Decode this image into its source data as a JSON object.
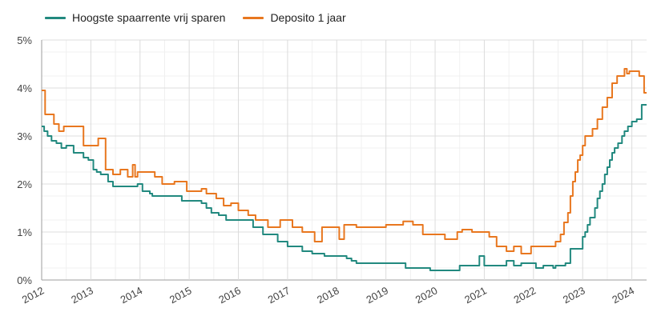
{
  "chart_data": {
    "type": "line",
    "title": "",
    "xlabel": "",
    "ylabel": "",
    "x_ticks": [
      "2012",
      "2013",
      "2014",
      "2015",
      "2016",
      "2017",
      "2018",
      "2019",
      "2020",
      "2021",
      "2022",
      "2023",
      "2024"
    ],
    "y_ticks": [
      "0%",
      "1%",
      "2%",
      "3%",
      "4%",
      "5%"
    ],
    "xlim": [
      2012.0,
      2024.3
    ],
    "ylim": [
      0,
      5
    ],
    "grid": true,
    "legend_position": "top-left",
    "series": [
      {
        "name": "Hoogste spaarrente vrij sparen",
        "color": "#22897f",
        "points": [
          [
            2012.0,
            3.2
          ],
          [
            2012.05,
            3.2
          ],
          [
            2012.05,
            3.1
          ],
          [
            2012.12,
            3.1
          ],
          [
            2012.12,
            3.0
          ],
          [
            2012.2,
            3.0
          ],
          [
            2012.2,
            2.9
          ],
          [
            2012.3,
            2.9
          ],
          [
            2012.3,
            2.85
          ],
          [
            2012.4,
            2.85
          ],
          [
            2012.4,
            2.75
          ],
          [
            2012.5,
            2.75
          ],
          [
            2012.5,
            2.8
          ],
          [
            2012.65,
            2.8
          ],
          [
            2012.65,
            2.65
          ],
          [
            2012.85,
            2.65
          ],
          [
            2012.85,
            2.55
          ],
          [
            2012.95,
            2.55
          ],
          [
            2012.95,
            2.5
          ],
          [
            2013.05,
            2.5
          ],
          [
            2013.05,
            2.3
          ],
          [
            2013.12,
            2.3
          ],
          [
            2013.12,
            2.25
          ],
          [
            2013.2,
            2.25
          ],
          [
            2013.2,
            2.2
          ],
          [
            2013.35,
            2.2
          ],
          [
            2013.35,
            2.05
          ],
          [
            2013.45,
            2.05
          ],
          [
            2013.45,
            1.95
          ],
          [
            2013.95,
            1.95
          ],
          [
            2013.95,
            2.0
          ],
          [
            2014.05,
            2.0
          ],
          [
            2014.05,
            1.85
          ],
          [
            2014.2,
            1.85
          ],
          [
            2014.2,
            1.8
          ],
          [
            2014.25,
            1.8
          ],
          [
            2014.25,
            1.75
          ],
          [
            2014.85,
            1.75
          ],
          [
            2014.85,
            1.65
          ],
          [
            2015.25,
            1.65
          ],
          [
            2015.25,
            1.6
          ],
          [
            2015.35,
            1.6
          ],
          [
            2015.35,
            1.5
          ],
          [
            2015.45,
            1.5
          ],
          [
            2015.45,
            1.4
          ],
          [
            2015.6,
            1.4
          ],
          [
            2015.6,
            1.35
          ],
          [
            2015.75,
            1.35
          ],
          [
            2015.75,
            1.25
          ],
          [
            2016.3,
            1.25
          ],
          [
            2016.3,
            1.1
          ],
          [
            2016.5,
            1.1
          ],
          [
            2016.5,
            0.95
          ],
          [
            2016.8,
            0.95
          ],
          [
            2016.8,
            0.8
          ],
          [
            2017.0,
            0.8
          ],
          [
            2017.0,
            0.7
          ],
          [
            2017.3,
            0.7
          ],
          [
            2017.3,
            0.6
          ],
          [
            2017.5,
            0.6
          ],
          [
            2017.5,
            0.55
          ],
          [
            2017.75,
            0.55
          ],
          [
            2017.75,
            0.5
          ],
          [
            2018.2,
            0.5
          ],
          [
            2018.2,
            0.45
          ],
          [
            2018.3,
            0.45
          ],
          [
            2018.3,
            0.4
          ],
          [
            2018.4,
            0.4
          ],
          [
            2018.4,
            0.35
          ],
          [
            2019.4,
            0.35
          ],
          [
            2019.4,
            0.25
          ],
          [
            2019.9,
            0.25
          ],
          [
            2019.9,
            0.2
          ],
          [
            2020.5,
            0.2
          ],
          [
            2020.5,
            0.3
          ],
          [
            2020.9,
            0.3
          ],
          [
            2020.9,
            0.5
          ],
          [
            2021.0,
            0.5
          ],
          [
            2021.0,
            0.3
          ],
          [
            2021.45,
            0.3
          ],
          [
            2021.45,
            0.4
          ],
          [
            2021.6,
            0.4
          ],
          [
            2021.6,
            0.3
          ],
          [
            2021.75,
            0.3
          ],
          [
            2021.75,
            0.35
          ],
          [
            2022.05,
            0.35
          ],
          [
            2022.05,
            0.25
          ],
          [
            2022.2,
            0.25
          ],
          [
            2022.2,
            0.3
          ],
          [
            2022.4,
            0.3
          ],
          [
            2022.4,
            0.25
          ],
          [
            2022.45,
            0.25
          ],
          [
            2022.45,
            0.3
          ],
          [
            2022.65,
            0.3
          ],
          [
            2022.65,
            0.35
          ],
          [
            2022.75,
            0.35
          ],
          [
            2022.75,
            0.65
          ],
          [
            2023.0,
            0.65
          ],
          [
            2023.0,
            0.9
          ],
          [
            2023.05,
            0.9
          ],
          [
            2023.05,
            1.0
          ],
          [
            2023.1,
            1.0
          ],
          [
            2023.1,
            1.15
          ],
          [
            2023.15,
            1.15
          ],
          [
            2023.15,
            1.3
          ],
          [
            2023.25,
            1.3
          ],
          [
            2023.25,
            1.5
          ],
          [
            2023.3,
            1.5
          ],
          [
            2023.3,
            1.7
          ],
          [
            2023.35,
            1.7
          ],
          [
            2023.35,
            1.85
          ],
          [
            2023.4,
            1.85
          ],
          [
            2023.4,
            2.0
          ],
          [
            2023.45,
            2.0
          ],
          [
            2023.45,
            2.2
          ],
          [
            2023.5,
            2.2
          ],
          [
            2023.5,
            2.35
          ],
          [
            2023.55,
            2.35
          ],
          [
            2023.55,
            2.5
          ],
          [
            2023.6,
            2.5
          ],
          [
            2023.6,
            2.65
          ],
          [
            2023.65,
            2.65
          ],
          [
            2023.65,
            2.75
          ],
          [
            2023.72,
            2.75
          ],
          [
            2023.72,
            2.85
          ],
          [
            2023.8,
            2.85
          ],
          [
            2023.8,
            3.0
          ],
          [
            2023.85,
            3.0
          ],
          [
            2023.85,
            3.1
          ],
          [
            2023.92,
            3.1
          ],
          [
            2023.92,
            3.2
          ],
          [
            2024.0,
            3.2
          ],
          [
            2024.0,
            3.3
          ],
          [
            2024.1,
            3.3
          ],
          [
            2024.1,
            3.35
          ],
          [
            2024.2,
            3.35
          ],
          [
            2024.2,
            3.65
          ],
          [
            2024.3,
            3.65
          ]
        ]
      },
      {
        "name": "Deposito 1 jaar",
        "color": "#e8771f",
        "points": [
          [
            2012.0,
            3.95
          ],
          [
            2012.07,
            3.95
          ],
          [
            2012.07,
            3.45
          ],
          [
            2012.25,
            3.45
          ],
          [
            2012.25,
            3.25
          ],
          [
            2012.35,
            3.25
          ],
          [
            2012.35,
            3.1
          ],
          [
            2012.45,
            3.1
          ],
          [
            2012.45,
            3.2
          ],
          [
            2012.85,
            3.2
          ],
          [
            2012.85,
            2.8
          ],
          [
            2013.15,
            2.8
          ],
          [
            2013.15,
            2.95
          ],
          [
            2013.3,
            2.95
          ],
          [
            2013.3,
            2.3
          ],
          [
            2013.45,
            2.3
          ],
          [
            2013.45,
            2.2
          ],
          [
            2013.6,
            2.2
          ],
          [
            2013.6,
            2.3
          ],
          [
            2013.75,
            2.3
          ],
          [
            2013.75,
            2.15
          ],
          [
            2013.85,
            2.15
          ],
          [
            2013.85,
            2.4
          ],
          [
            2013.9,
            2.4
          ],
          [
            2013.9,
            2.15
          ],
          [
            2013.95,
            2.15
          ],
          [
            2013.95,
            2.25
          ],
          [
            2014.3,
            2.25
          ],
          [
            2014.3,
            2.15
          ],
          [
            2014.45,
            2.15
          ],
          [
            2014.45,
            2.0
          ],
          [
            2014.7,
            2.0
          ],
          [
            2014.7,
            2.05
          ],
          [
            2014.95,
            2.05
          ],
          [
            2014.95,
            1.85
          ],
          [
            2015.25,
            1.85
          ],
          [
            2015.25,
            1.9
          ],
          [
            2015.35,
            1.9
          ],
          [
            2015.35,
            1.8
          ],
          [
            2015.55,
            1.8
          ],
          [
            2015.55,
            1.7
          ],
          [
            2015.7,
            1.7
          ],
          [
            2015.7,
            1.55
          ],
          [
            2015.85,
            1.55
          ],
          [
            2015.85,
            1.6
          ],
          [
            2016.0,
            1.6
          ],
          [
            2016.0,
            1.45
          ],
          [
            2016.2,
            1.45
          ],
          [
            2016.2,
            1.35
          ],
          [
            2016.35,
            1.35
          ],
          [
            2016.35,
            1.25
          ],
          [
            2016.6,
            1.25
          ],
          [
            2016.6,
            1.1
          ],
          [
            2016.85,
            1.1
          ],
          [
            2016.85,
            1.25
          ],
          [
            2017.1,
            1.25
          ],
          [
            2017.1,
            1.1
          ],
          [
            2017.3,
            1.1
          ],
          [
            2017.3,
            1.0
          ],
          [
            2017.55,
            1.0
          ],
          [
            2017.55,
            0.8
          ],
          [
            2017.7,
            0.8
          ],
          [
            2017.7,
            1.1
          ],
          [
            2018.05,
            1.1
          ],
          [
            2018.05,
            0.85
          ],
          [
            2018.15,
            0.85
          ],
          [
            2018.15,
            1.15
          ],
          [
            2018.4,
            1.15
          ],
          [
            2018.4,
            1.1
          ],
          [
            2018.6,
            1.1
          ],
          [
            2018.6,
            1.1
          ],
          [
            2019.0,
            1.1
          ],
          [
            2019.0,
            1.15
          ],
          [
            2019.35,
            1.15
          ],
          [
            2019.35,
            1.22
          ],
          [
            2019.55,
            1.22
          ],
          [
            2019.55,
            1.15
          ],
          [
            2019.75,
            1.15
          ],
          [
            2019.75,
            0.95
          ],
          [
            2020.2,
            0.95
          ],
          [
            2020.2,
            0.85
          ],
          [
            2020.45,
            0.85
          ],
          [
            2020.45,
            1.0
          ],
          [
            2020.55,
            1.0
          ],
          [
            2020.55,
            1.05
          ],
          [
            2020.75,
            1.05
          ],
          [
            2020.75,
            1.0
          ],
          [
            2021.1,
            1.0
          ],
          [
            2021.1,
            0.9
          ],
          [
            2021.25,
            0.9
          ],
          [
            2021.25,
            0.7
          ],
          [
            2021.45,
            0.7
          ],
          [
            2021.45,
            0.6
          ],
          [
            2021.6,
            0.6
          ],
          [
            2021.6,
            0.7
          ],
          [
            2021.75,
            0.7
          ],
          [
            2021.75,
            0.55
          ],
          [
            2021.95,
            0.55
          ],
          [
            2021.95,
            0.7
          ],
          [
            2022.45,
            0.7
          ],
          [
            2022.45,
            0.8
          ],
          [
            2022.55,
            0.8
          ],
          [
            2022.55,
            0.95
          ],
          [
            2022.62,
            0.95
          ],
          [
            2022.62,
            1.2
          ],
          [
            2022.7,
            1.2
          ],
          [
            2022.7,
            1.4
          ],
          [
            2022.75,
            1.4
          ],
          [
            2022.75,
            1.75
          ],
          [
            2022.8,
            1.75
          ],
          [
            2022.8,
            2.05
          ],
          [
            2022.85,
            2.05
          ],
          [
            2022.85,
            2.25
          ],
          [
            2022.9,
            2.25
          ],
          [
            2022.9,
            2.5
          ],
          [
            2022.95,
            2.5
          ],
          [
            2022.95,
            2.6
          ],
          [
            2023.0,
            2.6
          ],
          [
            2023.0,
            2.8
          ],
          [
            2023.05,
            2.8
          ],
          [
            2023.05,
            3.0
          ],
          [
            2023.2,
            3.0
          ],
          [
            2023.2,
            3.15
          ],
          [
            2023.3,
            3.15
          ],
          [
            2023.3,
            3.35
          ],
          [
            2023.4,
            3.35
          ],
          [
            2023.4,
            3.6
          ],
          [
            2023.5,
            3.6
          ],
          [
            2023.5,
            3.8
          ],
          [
            2023.6,
            3.8
          ],
          [
            2023.6,
            4.1
          ],
          [
            2023.7,
            4.1
          ],
          [
            2023.7,
            4.25
          ],
          [
            2023.85,
            4.25
          ],
          [
            2023.85,
            4.4
          ],
          [
            2023.9,
            4.4
          ],
          [
            2023.9,
            4.3
          ],
          [
            2023.95,
            4.3
          ],
          [
            2023.95,
            4.35
          ],
          [
            2024.15,
            4.35
          ],
          [
            2024.15,
            4.25
          ],
          [
            2024.25,
            4.25
          ],
          [
            2024.25,
            3.9
          ],
          [
            2024.3,
            3.9
          ]
        ]
      }
    ]
  }
}
